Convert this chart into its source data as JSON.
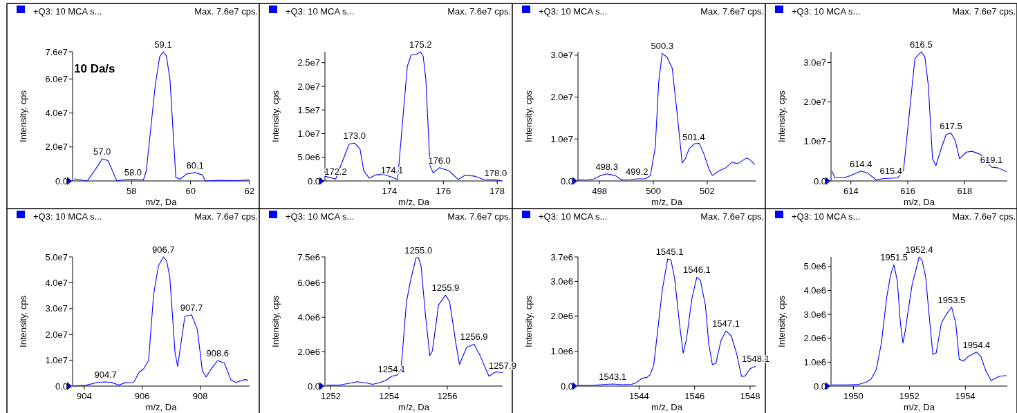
{
  "chart_data": [
    {
      "type": "line",
      "title": "+Q3: 10 MCA s...",
      "subtitle": "Max. 7.6e7 cps.",
      "xlabel": "m/z, Da",
      "ylabel": "Intensity, cps",
      "color": "#0000ff",
      "xlim": [
        56,
        62
      ],
      "ylim": [
        0,
        76000000
      ],
      "xticks": [
        58,
        60,
        62
      ],
      "yticks": [
        {
          "value": 0,
          "label": "0.0"
        },
        {
          "value": 20000000,
          "label": "2.0e7"
        },
        {
          "value": 40000000,
          "label": "4.0e7"
        },
        {
          "value": 60000000,
          "label": "6.0e7"
        },
        {
          "value": 76000000,
          "label": "7.6e7"
        }
      ],
      "x": [
        56.05,
        56.5,
        56.9,
        57.0,
        57.2,
        57.5,
        57.8,
        58.05,
        58.4,
        58.5,
        58.8,
        58.95,
        59.07,
        59.18,
        59.3,
        59.5,
        59.64,
        59.86,
        60.15,
        60.4,
        60.5,
        61.0,
        61.45,
        62
      ],
      "values": [
        1200000,
        0,
        10000000,
        13000000,
        12000000,
        0,
        800000,
        1000000,
        500000,
        6000000,
        56000000,
        73000000,
        76000000,
        73500000,
        60000000,
        2000000,
        1000000,
        4000000,
        5000000,
        3500000,
        0,
        400000,
        200000,
        600000
      ],
      "annotations": [
        "10 Da/s",
        {
          "text": "59.1",
          "x": 59.07,
          "y": 76000000
        },
        {
          "text": "57.0",
          "x": 57.0,
          "y": 13000000
        },
        {
          "text": "58.0",
          "x": 58.05,
          "y": 1000000
        },
        {
          "text": "60.1",
          "x": 60.15,
          "y": 5000000
        }
      ]
    },
    {
      "type": "line",
      "title": "+Q3: 10 MCA s...",
      "subtitle": "Max. 7.6e7 cps.",
      "xlabel": "m/z, Da",
      "ylabel": "Intensity, cps",
      "color": "#0000ff",
      "xlim": [
        171.6,
        178.2
      ],
      "ylim": [
        0,
        27300000
      ],
      "xticks": [
        174,
        176,
        178
      ],
      "yticks": [
        {
          "value": 0,
          "label": "0.0"
        },
        {
          "value": 5000000,
          "label": "5.0e6"
        },
        {
          "value": 10000000,
          "label": "1.0e7"
        },
        {
          "value": 15000000,
          "label": "1.5e7"
        },
        {
          "value": 20000000,
          "label": "2.0e7"
        },
        {
          "value": 25000000,
          "label": "2.5e7"
        }
      ],
      "x": [
        171.6,
        172.0,
        172.26,
        172.5,
        172.7,
        172.9,
        173.04,
        173.24,
        173.5,
        173.77,
        174.09,
        174.3,
        174.66,
        174.8,
        175.0,
        175.15,
        175.25,
        175.35,
        175.5,
        175.62,
        175.85,
        176.2,
        176.55,
        176.8,
        177.18,
        177.5,
        177.94,
        178.16
      ],
      "values": [
        1000000,
        400000,
        4300000,
        7800000,
        8000000,
        6800000,
        2200000,
        600000,
        1300000,
        1400000,
        800000,
        300000,
        24200000,
        26600000,
        26800000,
        27300000,
        26300000,
        21400000,
        3300000,
        1700000,
        2800000,
        2200000,
        300000,
        1200000,
        1000000,
        300000,
        200000,
        100000
      ],
      "annotations": [
        {
          "text": "175.2",
          "x": 175.15,
          "y": 27300000
        },
        {
          "text": "173.0",
          "x": 172.7,
          "y": 8000000
        },
        {
          "text": "172.2",
          "x": 172.0,
          "y": 400000
        },
        {
          "text": "174.1",
          "x": 174.09,
          "y": 800000
        },
        {
          "text": "176.0",
          "x": 175.85,
          "y": 2800000
        },
        {
          "text": "178.0",
          "x": 177.94,
          "y": 200000
        }
      ]
    },
    {
      "type": "line",
      "title": "+Q3: 10 MCA s...",
      "subtitle": "Max. 7.6e7 cps.",
      "xlabel": "m/z, Da",
      "ylabel": "Intensity, cps",
      "color": "#0000ff",
      "xlim": [
        497.2,
        503.8
      ],
      "ylim": [
        0,
        30800000
      ],
      "xticks": [
        498,
        500,
        502
      ],
      "yticks": [
        {
          "value": 0,
          "label": "0.0"
        },
        {
          "value": 10000000,
          "label": "1.0e7"
        },
        {
          "value": 20000000,
          "label": "2.0e7"
        },
        {
          "value": 30000000,
          "label": "3.0e7"
        }
      ],
      "x": [
        497.2,
        497.53,
        497.8,
        498.05,
        498.27,
        498.58,
        498.83,
        499.14,
        499.39,
        499.7,
        499.89,
        500.07,
        500.2,
        500.33,
        500.5,
        500.7,
        500.88,
        501.07,
        501.19,
        501.32,
        501.5,
        501.7,
        501.88,
        502.06,
        502.19,
        502.43,
        502.68,
        502.93,
        503.12,
        503.47,
        503.62,
        503.76
      ],
      "values": [
        300000,
        200000,
        500000,
        1300000,
        1700000,
        1300000,
        200000,
        300000,
        500000,
        500000,
        1300000,
        8000000,
        23700000,
        30400000,
        29600000,
        26900000,
        16300000,
        4300000,
        5300000,
        7600000,
        8800000,
        9000000,
        6400000,
        2900000,
        1300000,
        2400000,
        3100000,
        4500000,
        4100000,
        5500000,
        4900000,
        3900000
      ],
      "annotations": [
        {
          "text": "500.3",
          "x": 500.33,
          "y": 30400000
        },
        {
          "text": "498.3",
          "x": 498.27,
          "y": 1700000
        },
        {
          "text": "499.2",
          "x": 499.39,
          "y": 500000
        },
        {
          "text": "501.4",
          "x": 501.5,
          "y": 8800000
        }
      ]
    },
    {
      "type": "line",
      "title": "+Q3: 10 MCA s...",
      "subtitle": "Max. 7.6e7 cps.",
      "xlabel": "m/z, Da",
      "ylabel": "Intensity, cps",
      "color": "#0000ff",
      "xlim": [
        613.3,
        619.5
      ],
      "ylim": [
        0,
        32700000
      ],
      "xticks": [
        614,
        616,
        618
      ],
      "yticks": [
        {
          "value": 0,
          "label": "0.0"
        },
        {
          "value": 10000000,
          "label": "1.0e7"
        },
        {
          "value": 20000000,
          "label": "2.0e7"
        },
        {
          "value": 30000000,
          "label": "3.0e7"
        }
      ],
      "x": [
        613.33,
        613.44,
        613.76,
        614.0,
        614.35,
        614.59,
        614.88,
        615.18,
        615.41,
        615.65,
        615.85,
        616.05,
        616.25,
        616.47,
        616.6,
        616.72,
        616.87,
        616.99,
        617.15,
        617.35,
        617.52,
        617.67,
        617.82,
        618.06,
        618.26,
        618.53,
        618.76,
        618.94,
        619.18,
        619.47
      ],
      "values": [
        2500000,
        800000,
        800000,
        1400000,
        2500000,
        2000000,
        300000,
        600000,
        700000,
        800000,
        2700000,
        16800000,
        31000000,
        32700000,
        31400000,
        24300000,
        5600000,
        3900000,
        7700000,
        11800000,
        12100000,
        10200000,
        5600000,
        7300000,
        7500000,
        6800000,
        5200000,
        3500000,
        3300000,
        2300000
      ],
      "annotations": [
        {
          "text": "616.5",
          "x": 616.47,
          "y": 32700000
        },
        {
          "text": "614.4",
          "x": 614.35,
          "y": 2500000
        },
        {
          "text": "615.4",
          "x": 615.41,
          "y": 700000
        },
        {
          "text": "617.5",
          "x": 617.52,
          "y": 12100000
        },
        {
          "text": "619.1",
          "x": 618.94,
          "y": 3500000
        }
      ]
    },
    {
      "type": "line",
      "title": "+Q3: 10 MCA s...",
      "subtitle": "Max. 7.6e7 cps.",
      "xlabel": "m/z, Da",
      "ylabel": "Intensity, cps",
      "color": "#0000ff",
      "xlim": [
        903.6,
        909.7
      ],
      "ylim": [
        0,
        50000000
      ],
      "xticks": [
        904,
        906,
        908
      ],
      "yticks": [
        {
          "value": 0,
          "label": "0.0"
        },
        {
          "value": 10000000,
          "label": "1.0e7"
        },
        {
          "value": 20000000,
          "label": "2.0e7"
        },
        {
          "value": 30000000,
          "label": "3.0e7"
        },
        {
          "value": 40000000,
          "label": "4.0e7"
        },
        {
          "value": 50000000,
          "label": "5.0e7"
        }
      ],
      "x": [
        903.63,
        904.06,
        904.45,
        904.74,
        904.97,
        905.19,
        905.42,
        905.7,
        905.9,
        906.05,
        906.22,
        906.39,
        906.56,
        906.73,
        906.84,
        906.95,
        907.13,
        907.22,
        907.47,
        907.7,
        907.9,
        908.07,
        908.2,
        908.38,
        908.6,
        908.83,
        909.06,
        909.23,
        909.51,
        909.65
      ],
      "values": [
        0,
        300000,
        1400000,
        1600000,
        1300000,
        400000,
        1300000,
        1400000,
        5400000,
        6700000,
        9900000,
        35200000,
        46600000,
        50000000,
        48500000,
        42200000,
        13000000,
        7600000,
        27000000,
        27600000,
        21900000,
        6100000,
        3500000,
        6700000,
        9900000,
        8900000,
        2300000,
        1400000,
        2500000,
        2300000
      ],
      "annotations": [
        {
          "text": "906.7",
          "x": 906.73,
          "y": 50000000
        },
        {
          "text": "904.7",
          "x": 904.74,
          "y": 1600000
        },
        {
          "text": "907.7",
          "x": 907.7,
          "y": 27600000
        },
        {
          "text": "908.6",
          "x": 908.6,
          "y": 9900000
        }
      ]
    },
    {
      "type": "line",
      "title": "+Q3: 10 MCA s...",
      "subtitle": "Max. 7.6e7 cps.",
      "xlabel": "m/z, Da",
      "ylabel": "Intensity, cps",
      "color": "#0000ff",
      "xlim": [
        1251.8,
        1257.9
      ],
      "ylim": [
        0,
        7500000
      ],
      "xticks": [
        1252,
        1254,
        1256
      ],
      "yticks": [
        {
          "value": 0,
          "label": "0.0"
        },
        {
          "value": 2000000,
          "label": "2.0e6"
        },
        {
          "value": 4000000,
          "label": "4.0e6"
        },
        {
          "value": 6000000,
          "label": "6.0e6"
        },
        {
          "value": 7500000,
          "label": "7.5e6"
        }
      ],
      "x": [
        1251.86,
        1252.3,
        1252.6,
        1252.9,
        1253.19,
        1253.43,
        1253.67,
        1253.91,
        1254.09,
        1254.27,
        1254.41,
        1254.6,
        1254.75,
        1254.93,
        1255.01,
        1255.1,
        1255.25,
        1255.4,
        1255.49,
        1255.7,
        1255.94,
        1256.08,
        1256.3,
        1256.42,
        1256.66,
        1256.92,
        1257.13,
        1257.43,
        1257.67,
        1257.9
      ],
      "values": [
        60000,
        60000,
        150000,
        250000,
        190000,
        100000,
        190000,
        340000,
        570000,
        630000,
        910000,
        4900000,
        6220000,
        7460000,
        7460000,
        6980000,
        4140000,
        1760000,
        2050000,
        4710000,
        5280000,
        4900000,
        2430000,
        1250000,
        2240000,
        2430000,
        1760000,
        570000,
        820000,
        780000
      ],
      "annotations": [
        {
          "text": "1255.0",
          "x": 1255.01,
          "y": 7460000
        },
        {
          "text": "1254.1",
          "x": 1254.09,
          "y": 570000
        },
        {
          "text": "1255.9",
          "x": 1255.94,
          "y": 5280000
        },
        {
          "text": "1256.9",
          "x": 1256.92,
          "y": 2430000
        },
        {
          "text": "1257.9",
          "x": 1257.9,
          "y": 780000
        }
      ]
    },
    {
      "type": "line",
      "title": "+Q3: 10 MCA s...",
      "subtitle": "Max. 7.6e7 cps.",
      "xlabel": "m/z, Da",
      "ylabel": "Intensity, cps",
      "color": "#0000ff",
      "xlim": [
        1541.8,
        1548.2
      ],
      "ylim": [
        0,
        3700000
      ],
      "xticks": [
        1544,
        1546,
        1548
      ],
      "yticks": [
        {
          "value": 0,
          "label": "0.0"
        },
        {
          "value": 1000000,
          "label": "1.0e6"
        },
        {
          "value": 2000000,
          "label": "2.0e6"
        },
        {
          "value": 3000000,
          "label": "3.0e6"
        },
        {
          "value": 3700000,
          "label": "3.7e6"
        }
      ],
      "x": [
        1541.83,
        1542.3,
        1542.8,
        1543.05,
        1543.42,
        1543.73,
        1543.91,
        1544.1,
        1544.29,
        1544.41,
        1544.53,
        1544.84,
        1545.03,
        1545.15,
        1545.28,
        1545.46,
        1545.59,
        1545.71,
        1545.9,
        1546.08,
        1546.21,
        1546.39,
        1546.51,
        1546.64,
        1546.77,
        1546.95,
        1547.13,
        1547.32,
        1547.51,
        1547.69,
        1547.82,
        1548.0,
        1548.2
      ],
      "values": [
        20000,
        20000,
        50000,
        60000,
        40000,
        50000,
        100000,
        220000,
        250000,
        340000,
        610000,
        2770000,
        3640000,
        3610000,
        3090000,
        1760000,
        940000,
        1350000,
        2500000,
        3120000,
        3030000,
        2310000,
        1210000,
        610000,
        660000,
        1300000,
        1580000,
        1440000,
        940000,
        280000,
        290000,
        500000,
        570000
      ],
      "annotations": [
        {
          "text": "1545.1",
          "x": 1545.1,
          "y": 3640000
        },
        {
          "text": "1543.1",
          "x": 1543.05,
          "y": 60000
        },
        {
          "text": "1546.1",
          "x": 1546.08,
          "y": 3120000
        },
        {
          "text": "1547.1",
          "x": 1547.13,
          "y": 1580000
        },
        {
          "text": "1548.1",
          "x": 1548.2,
          "y": 570000
        }
      ]
    },
    {
      "type": "line",
      "title": "+Q3: 10 MCA s...",
      "subtitle": "Max. 7.6e7 cps.",
      "xlabel": "m/z, Da",
      "ylabel": "Intensity, cps",
      "color": "#0000ff",
      "xlim": [
        1949.2,
        1955.5
      ],
      "ylim": [
        0,
        5400000
      ],
      "xticks": [
        1950,
        1952,
        1954
      ],
      "yticks": [
        {
          "value": 0,
          "label": "0.0"
        },
        {
          "value": 1000000,
          "label": "1.0e6"
        },
        {
          "value": 2000000,
          "label": "2.0e6"
        },
        {
          "value": 3000000,
          "label": "3.0e6"
        },
        {
          "value": 4000000,
          "label": "4.0e6"
        },
        {
          "value": 5000000,
          "label": "5.0e6"
        }
      ],
      "x": [
        1949.23,
        1949.72,
        1950.15,
        1950.45,
        1950.64,
        1950.82,
        1951.0,
        1951.19,
        1951.33,
        1951.45,
        1951.57,
        1951.68,
        1951.77,
        1951.86,
        1951.94,
        1952.1,
        1952.35,
        1952.45,
        1952.58,
        1952.69,
        1952.84,
        1952.96,
        1953.14,
        1953.33,
        1953.51,
        1953.66,
        1953.78,
        1953.94,
        1954.12,
        1954.4,
        1954.55,
        1954.73,
        1954.92,
        1955.08,
        1955.23,
        1955.47
      ],
      "values": [
        50000,
        50000,
        60000,
        160000,
        300000,
        710000,
        1800000,
        3710000,
        4660000,
        5070000,
        4390000,
        2620000,
        1800000,
        2340000,
        3020000,
        4250000,
        5400000,
        5270000,
        4590000,
        3160000,
        1320000,
        1390000,
        2620000,
        3020000,
        3300000,
        2620000,
        1120000,
        1050000,
        1250000,
        1420000,
        1250000,
        640000,
        230000,
        330000,
        410000,
        440000
      ],
      "annotations": [
        {
          "text": "1952.4",
          "x": 1952.35,
          "y": 5400000
        },
        {
          "text": "1951.5",
          "x": 1951.45,
          "y": 5070000
        },
        {
          "text": "1953.5",
          "x": 1953.51,
          "y": 3300000
        },
        {
          "text": "1954.4",
          "x": 1954.4,
          "y": 1420000
        }
      ]
    }
  ]
}
